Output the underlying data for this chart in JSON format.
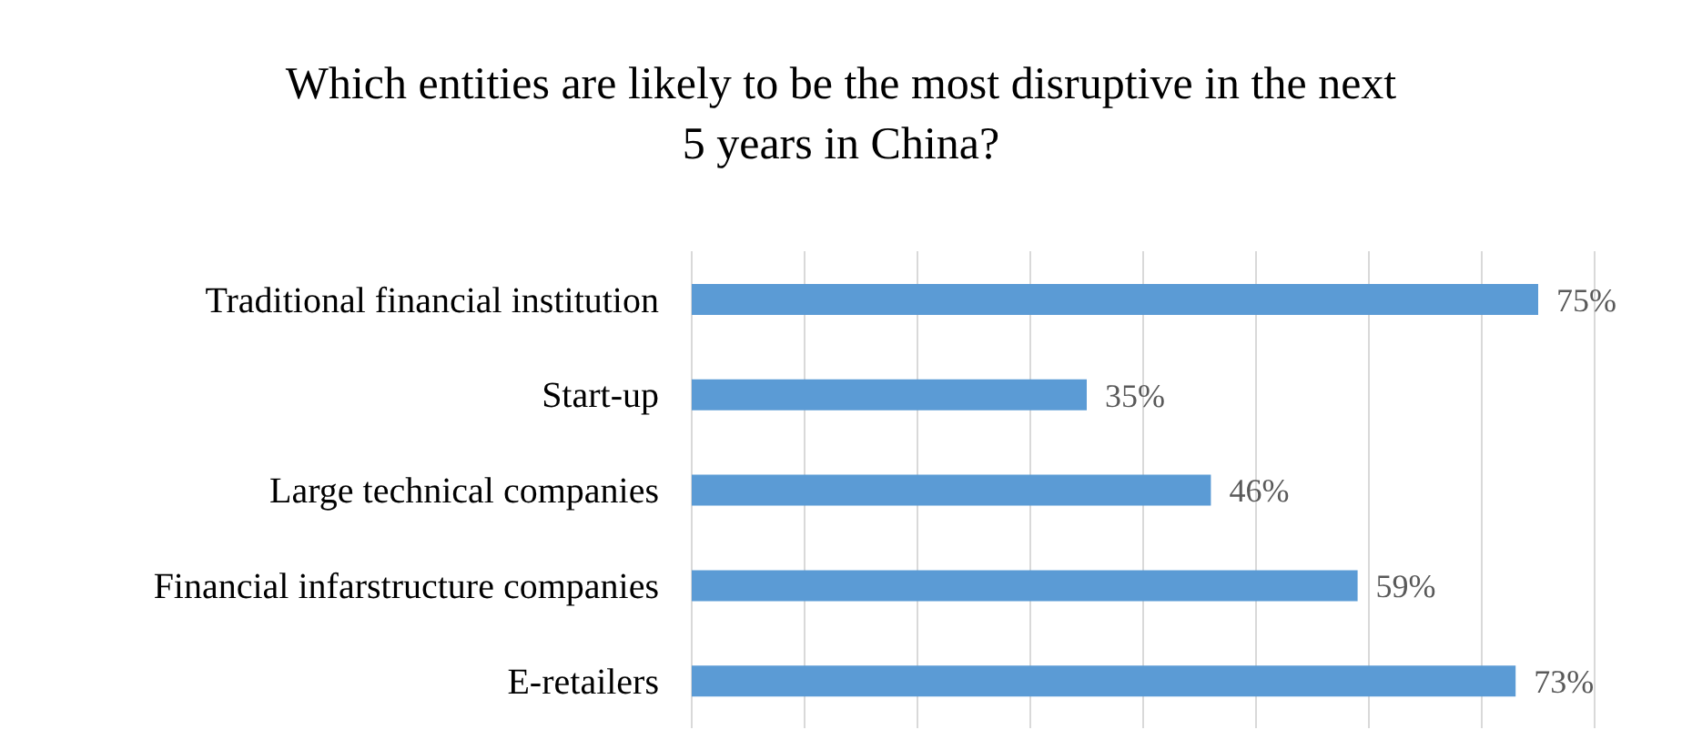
{
  "chart_data": {
    "type": "bar",
    "orientation": "horizontal",
    "title": "Which entities are likely to be the most disruptive in the next\n5 years in China?",
    "categories": [
      "Traditional financial institution",
      "Start-up",
      "Large technical companies",
      "Financial infarstructure companies",
      "E-retailers"
    ],
    "values": [
      75,
      35,
      46,
      59,
      73
    ],
    "color": "#5b9bd5",
    "value_labels": [
      "75%",
      "35%",
      "46%",
      "59%",
      "73%"
    ],
    "xlim": [
      0,
      80
    ],
    "xticks": [
      {
        "value": 0,
        "label": null
      },
      {
        "value": 10,
        "label": null
      },
      {
        "value": 20,
        "label": null
      },
      {
        "value": 30,
        "label": null
      },
      {
        "value": 40,
        "label": null
      },
      {
        "value": 50,
        "label": null
      },
      {
        "value": 60,
        "label": null
      },
      {
        "value": 70,
        "label": null
      },
      {
        "value": 80,
        "label": null
      }
    ],
    "grid": "x",
    "tick_labels": "y"
  }
}
